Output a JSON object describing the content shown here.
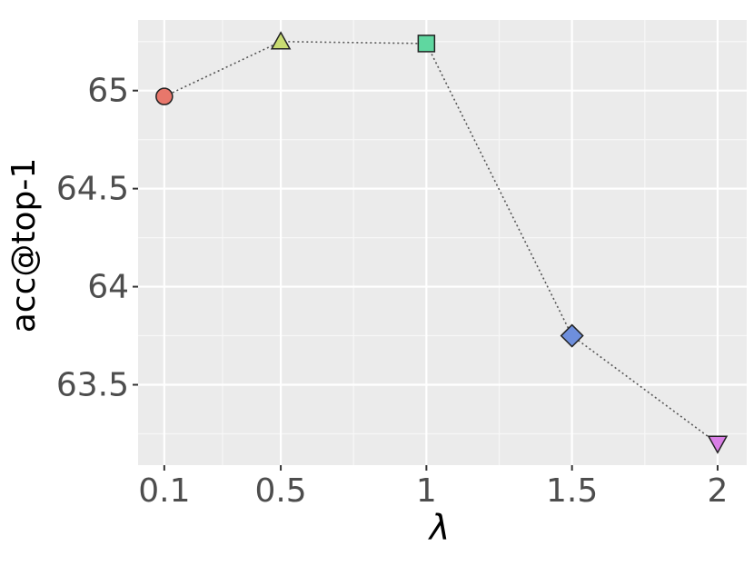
{
  "chart_data": {
    "type": "line",
    "x_label": "λ",
    "y_label": "acc@top-1",
    "x": [
      0.1,
      0.5,
      1,
      1.5,
      2
    ],
    "values": [
      64.97,
      65.25,
      65.24,
      63.75,
      63.2
    ],
    "colors": [
      "#e8776b",
      "#c9dc72",
      "#5fd7a0",
      "#6e8fdc",
      "#d97fe6"
    ],
    "shapes": [
      "circle",
      "triangle",
      "square",
      "diamond",
      "triangle-down"
    ],
    "xlim": [
      0.01,
      2.1
    ],
    "ylim": [
      63.09,
      65.36
    ],
    "xticks": [
      0.1,
      0.5,
      1,
      1.5,
      2
    ],
    "yticks": [
      63.5,
      64,
      64.5,
      65
    ],
    "grid": true
  }
}
